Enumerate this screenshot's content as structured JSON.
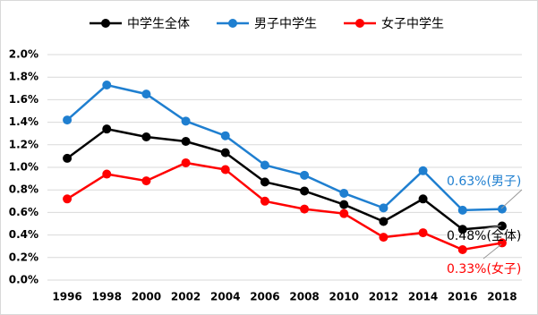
{
  "chart_data": {
    "type": "line",
    "categories": [
      "1996",
      "1998",
      "2000",
      "2002",
      "2004",
      "2006",
      "2008",
      "2010",
      "2012",
      "2014",
      "2016",
      "2018"
    ],
    "series": [
      {
        "name": "中学生全体",
        "color": "#000000",
        "values": [
          1.08,
          1.34,
          1.27,
          1.23,
          1.13,
          0.87,
          0.79,
          0.67,
          0.52,
          0.72,
          0.45,
          0.48
        ]
      },
      {
        "name": "男子中学生",
        "color": "#1f7fd0",
        "values": [
          1.42,
          1.73,
          1.65,
          1.41,
          1.28,
          1.02,
          0.93,
          0.77,
          0.64,
          0.97,
          0.62,
          0.63
        ]
      },
      {
        "name": "女子中学生",
        "color": "#ff0000",
        "values": [
          0.72,
          0.94,
          0.88,
          1.04,
          0.98,
          0.7,
          0.63,
          0.59,
          0.38,
          0.42,
          0.27,
          0.33
        ]
      }
    ],
    "ylim": [
      0,
      2.0
    ],
    "yticks": [
      {
        "value": 0,
        "label": "0.0%"
      },
      {
        "value": 0.2,
        "label": "0.2%"
      },
      {
        "value": 0.4,
        "label": "0.4%"
      },
      {
        "value": 0.6,
        "label": "0.6%"
      },
      {
        "value": 0.8,
        "label": "0.8%"
      },
      {
        "value": 1.0,
        "label": "1.0%"
      },
      {
        "value": 1.2,
        "label": "1.2%"
      },
      {
        "value": 1.4,
        "label": "1.4%"
      },
      {
        "value": 1.6,
        "label": "1.6%"
      },
      {
        "value": 1.8,
        "label": "1.8%"
      },
      {
        "value": 2.0,
        "label": "2.0%"
      }
    ],
    "grid": true,
    "annotations": [
      {
        "text": "0.63%(男子)",
        "color": "#1f7fd0"
      },
      {
        "text": "0.48%(全体)",
        "color": "#000000"
      },
      {
        "text": "0.33%(女子)",
        "color": "#ff0000"
      }
    ]
  }
}
